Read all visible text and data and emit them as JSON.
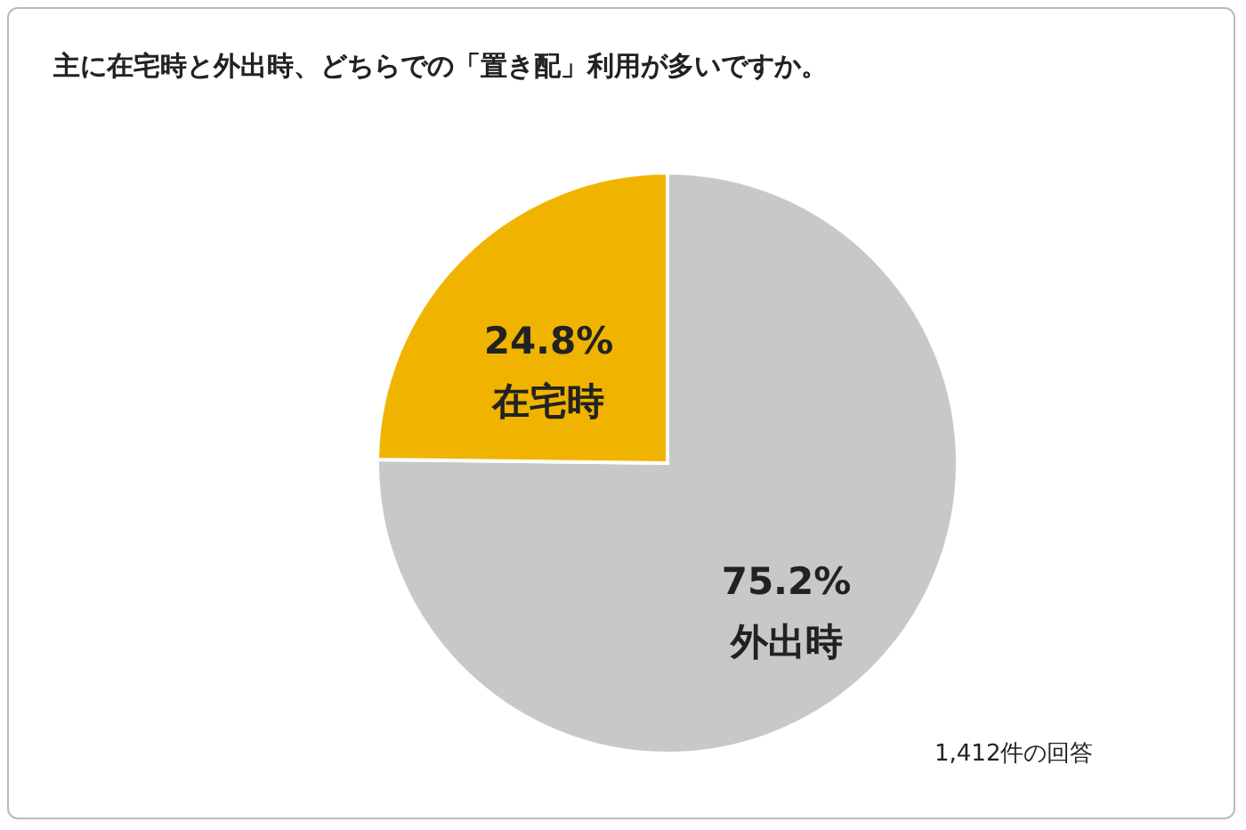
{
  "chart_data": {
    "type": "pie",
    "title": "主に在宅時と外出時、どちらでの「置き配」利用が多いですか。",
    "categories": [
      "外出時",
      "在宅時"
    ],
    "values": [
      75.2,
      24.8
    ],
    "colors": [
      "#c8c8c8",
      "#f0b400"
    ],
    "value_labels": [
      "75.2%",
      "24.8%"
    ],
    "annotations": [
      "1,412件の回答"
    ],
    "legend": false
  }
}
